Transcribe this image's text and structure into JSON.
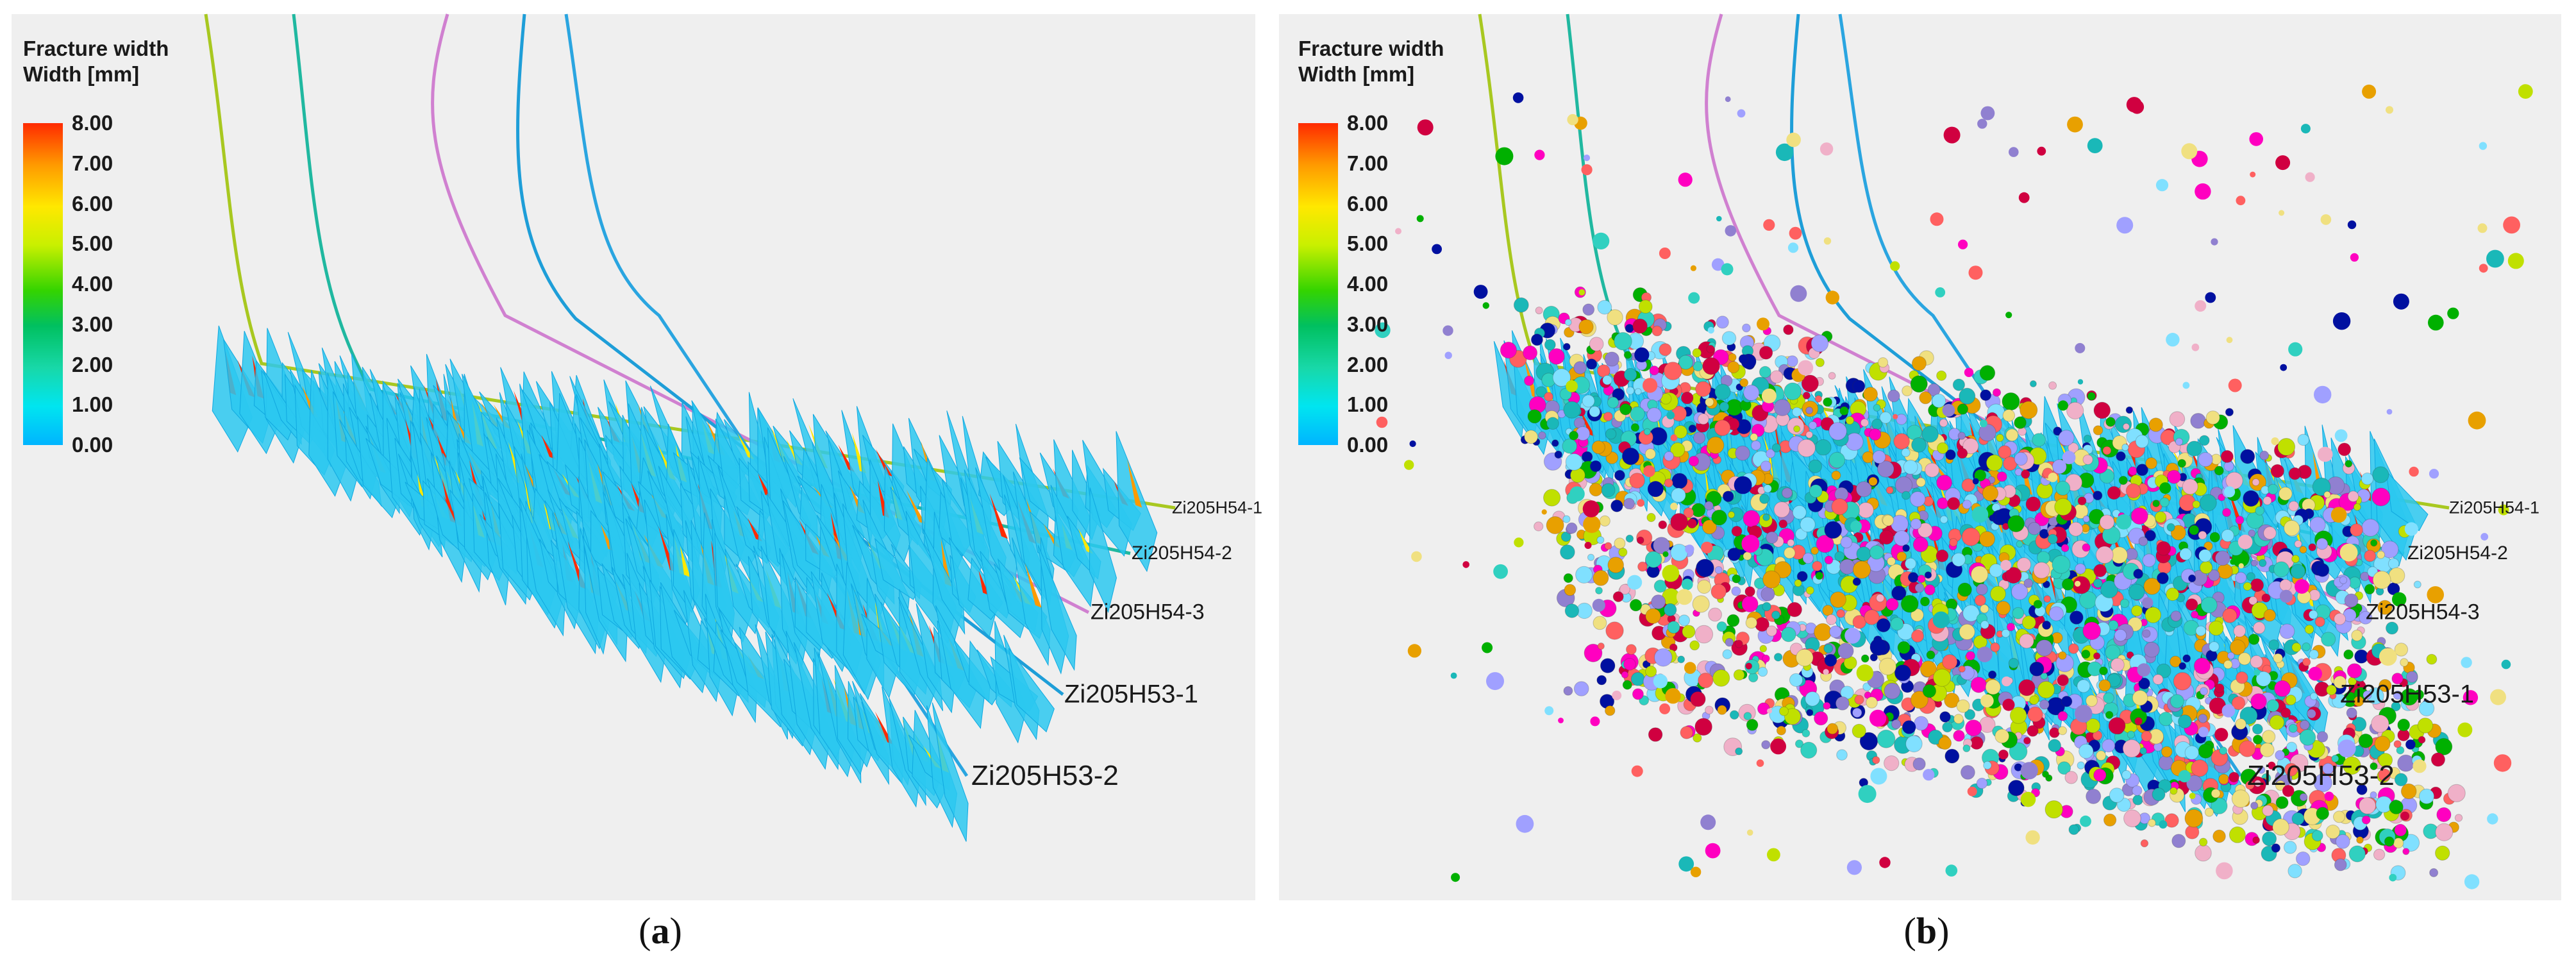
{
  "panels": [
    {
      "id": "a",
      "caption_letter": "a",
      "legend": {
        "title_line1": "Fracture width",
        "title_line2": "Width [mm]",
        "ticks": [
          "8.00",
          "7.00",
          "6.00",
          "5.00",
          "4.00",
          "3.00",
          "2.00",
          "1.00",
          "0.00"
        ]
      },
      "wells": [
        "Zi205H54-1",
        "Zi205H54-2",
        "Zi205H54-3",
        "Zi205H53-1",
        "Zi205H53-2"
      ],
      "well_colors": [
        "#2f8fd0",
        "#20b8a0",
        "#d080d0",
        "#1e9ed8",
        "#2aa5e0"
      ],
      "microseismic_events": false
    },
    {
      "id": "b",
      "caption_letter": "b",
      "legend": {
        "title_line1": "Fracture width",
        "title_line2": "Width [mm]",
        "ticks": [
          "8.00",
          "7.00",
          "6.00",
          "5.00",
          "4.00",
          "3.00",
          "2.00",
          "1.00",
          "0.00"
        ]
      },
      "wells": [
        "Zi205H54-1",
        "Zi205H54-2",
        "Zi205H54-3",
        "Zi205H53-1",
        "Zi205H53-2"
      ],
      "well_colors": [
        "#2f8fd0",
        "#20b8a0",
        "#d080d0",
        "#1e9ed8",
        "#2aa5e0"
      ],
      "microseismic_events": true
    }
  ]
}
